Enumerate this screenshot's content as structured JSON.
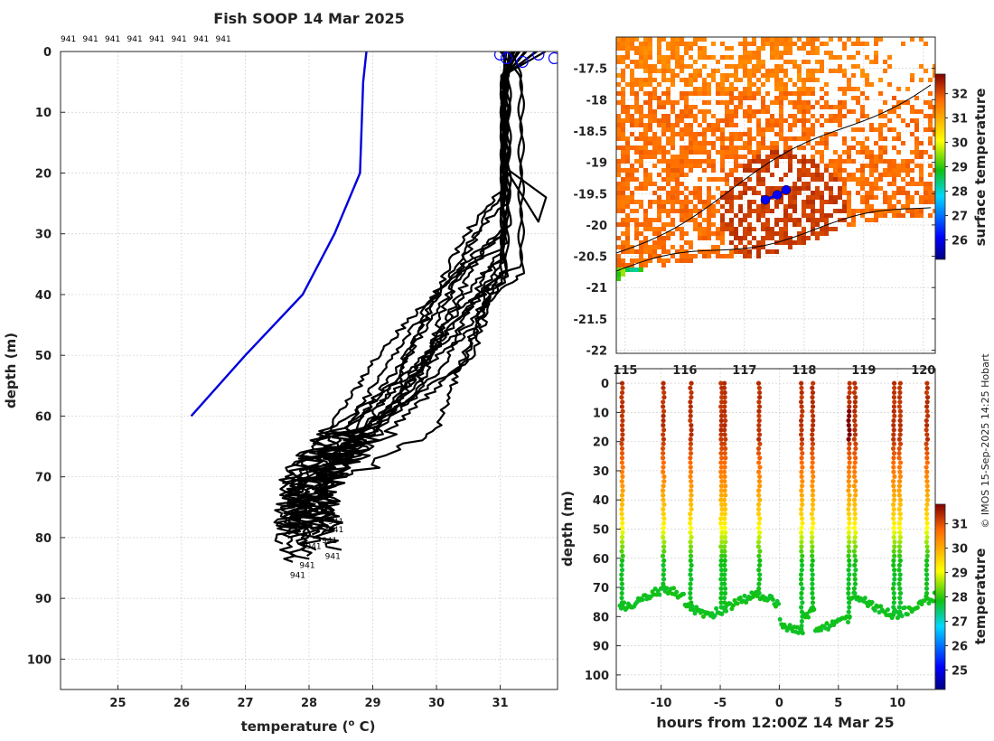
{
  "credit": "© IMOS 15-Sep-2025 14:25 Hobart",
  "colors": {
    "profile": "#000000",
    "climatology": "#0000dd",
    "marker": "#0000ff"
  },
  "chart_data": [
    {
      "type": "line",
      "name": "profiles",
      "title": "Fish SOOP 14 Mar 2025",
      "xlabel": "temperature (",
      "xlabel_unit": "o",
      "xlabel_tail": " C)",
      "ylabel": "depth (m)",
      "xlim": [
        24.1,
        31.9
      ],
      "ylim": [
        105,
        0
      ],
      "xticks": [
        "25",
        "26",
        "27",
        "28",
        "29",
        "30",
        "31"
      ],
      "yticks": [
        "0",
        "10",
        "20",
        "30",
        "40",
        "50",
        "60",
        "70",
        "80",
        "90",
        "100"
      ],
      "top_labels": [
        "941",
        "941",
        "941",
        "941",
        "941",
        "941",
        "941",
        "941"
      ],
      "bottom_labels": [
        "941",
        "941",
        "941",
        "941",
        "941",
        "941",
        "941"
      ],
      "climatology": [
        [
          28.9,
          0
        ],
        [
          28.85,
          5
        ],
        [
          28.8,
          20
        ],
        [
          28.4,
          30
        ],
        [
          27.9,
          40
        ],
        [
          27.0,
          50
        ],
        [
          26.15,
          60
        ]
      ],
      "profile_count": 17,
      "surface_markers": [
        31.0,
        31.1,
        31.35,
        31.6,
        31.85
      ]
    },
    {
      "type": "heatmap",
      "name": "surface-temperature-map",
      "xlim": [
        114.85,
        120.2
      ],
      "ylim": [
        -22.05,
        -17.0
      ],
      "xticks": [
        "115",
        "116",
        "117",
        "118",
        "119",
        "120"
      ],
      "yticks": [
        "-17.5",
        "-18",
        "-18.5",
        "-19",
        "-19.5",
        "-20",
        "-20.5",
        "-21",
        "-21.5",
        "-22"
      ],
      "colorbar_label": "surface temperature",
      "colorbar_range": [
        25.2,
        32.8
      ],
      "colorbar_ticks": [
        "26",
        "27",
        "28",
        "29",
        "30",
        "31",
        "32"
      ],
      "track": [
        [
          117.35,
          -19.6
        ],
        [
          117.55,
          -19.52
        ],
        [
          117.7,
          -19.44
        ]
      ]
    },
    {
      "type": "scatter",
      "name": "depth-time-section",
      "xlabel": "hours from 12:00Z 14 Mar 25",
      "ylabel": "depth (m)",
      "xlim": [
        -13.8,
        13.2
      ],
      "ylim": [
        105,
        -5
      ],
      "xticks": [
        "-10",
        "-5",
        "0",
        "5",
        "10"
      ],
      "yticks": [
        "0",
        "10",
        "20",
        "30",
        "40",
        "50",
        "60",
        "70",
        "80",
        "90",
        "100"
      ],
      "colorbar_label": "temperature",
      "colorbar_range": [
        24.2,
        31.8
      ],
      "colorbar_ticks": [
        "25",
        "26",
        "27",
        "28",
        "29",
        "30",
        "31"
      ],
      "casts_hours": [
        -13.3,
        -9.8,
        -7.5,
        -4.9,
        -4.6,
        -1.7,
        1.9,
        2.8,
        5.9,
        6.4,
        9.7,
        10.2,
        12.5
      ]
    }
  ]
}
